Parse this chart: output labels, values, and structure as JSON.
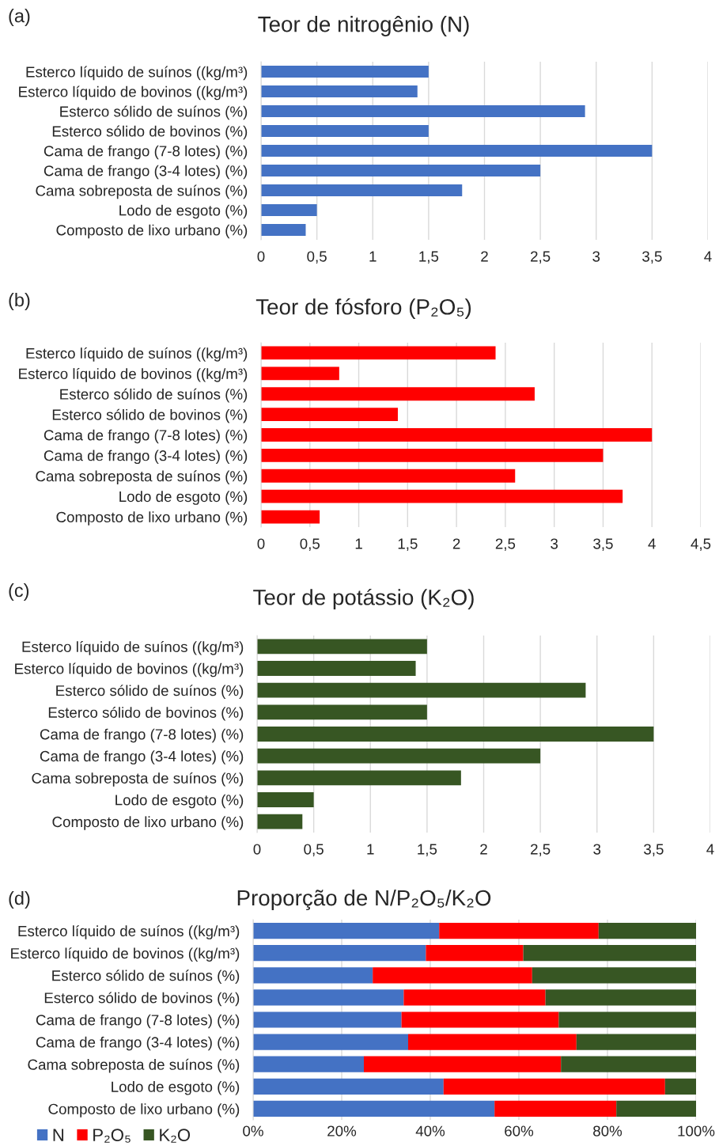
{
  "chart_data": [
    {
      "type": "bar",
      "orientation": "horizontal",
      "title": "Teor de nitrogênio (N)",
      "annotations": [
        "(a)"
      ],
      "categories": [
        "Esterco líquido de suínos ((kg/m³)",
        "Esterco líquido de bovinos ((kg/m³)",
        "Esterco sólido de suínos (%)",
        "Esterco sólido de bovinos (%)",
        "Cama de frango (7-8 lotes) (%)",
        "Cama de frango (3-4 lotes) (%)",
        "Cama sobreposta de suínos (%)",
        "Lodo de esgoto (%)",
        "Composto de lixo urbano (%)"
      ],
      "values": [
        1.5,
        1.4,
        2.9,
        1.5,
        3.5,
        2.5,
        1.8,
        0.5,
        0.4
      ],
      "color": "#4472c4",
      "xlim": [
        0,
        4
      ],
      "xticks": [
        0,
        {
          "value": 0.5,
          "label": "0,5"
        },
        1,
        {
          "value": 1.5,
          "label": "1,5"
        },
        2,
        {
          "value": 2.5,
          "label": "2,5"
        },
        3,
        {
          "value": 3.5,
          "label": "3,5"
        },
        4
      ],
      "grid": "x"
    },
    {
      "type": "bar",
      "orientation": "horizontal",
      "title": "Teor de fósforo (P₂O₅)",
      "annotations": [
        "(b)"
      ],
      "categories": [
        "Esterco líquido de suínos ((kg/m³)",
        "Esterco líquido de bovinos ((kg/m³)",
        "Esterco sólido de suínos (%)",
        "Esterco sólido de bovinos (%)",
        "Cama de frango (7-8 lotes) (%)",
        "Cama de frango (3-4 lotes) (%)",
        "Cama sobreposta de suínos (%)",
        "Lodo de esgoto (%)",
        "Composto de lixo urbano (%)"
      ],
      "values": [
        2.4,
        0.8,
        2.8,
        1.4,
        4.0,
        3.5,
        2.6,
        3.7,
        0.6
      ],
      "color": "#ff0000",
      "xlim": [
        0,
        4.5
      ],
      "xticks": [
        0,
        {
          "value": 0.5,
          "label": "0,5"
        },
        1,
        {
          "value": 1.5,
          "label": "1,5"
        },
        2,
        {
          "value": 2.5,
          "label": "2,5"
        },
        3,
        {
          "value": 3.5,
          "label": "3,5"
        },
        4,
        {
          "value": 4.5,
          "label": "4,5"
        }
      ],
      "grid": "x"
    },
    {
      "type": "bar",
      "orientation": "horizontal",
      "title": "Teor de potássio (K₂O)",
      "annotations": [
        "(c)"
      ],
      "categories": [
        "Esterco líquido de suínos ((kg/m³)",
        "Esterco líquido de bovinos ((kg/m³)",
        "Esterco sólido de suínos (%)",
        "Esterco sólido de bovinos (%)",
        "Cama de frango (7-8 lotes) (%)",
        "Cama de frango (3-4 lotes) (%)",
        "Cama sobreposta de suínos (%)",
        "Lodo de esgoto (%)",
        "Composto de lixo urbano (%)"
      ],
      "values": [
        1.5,
        1.4,
        2.9,
        1.5,
        3.5,
        2.5,
        1.8,
        0.5,
        0.4
      ],
      "color": "#375623",
      "xlim": [
        0,
        4
      ],
      "xticks": [
        0,
        {
          "value": 0.5,
          "label": "0,5"
        },
        1,
        {
          "value": 1.5,
          "label": "1,5"
        },
        2,
        {
          "value": 2.5,
          "label": "2,5"
        },
        3,
        {
          "value": 3.5,
          "label": "3,5"
        },
        4
      ],
      "grid": "x"
    },
    {
      "type": "bar",
      "orientation": "horizontal",
      "stacked": true,
      "title": "Proporção de N/P₂O₅/K₂O",
      "annotations": [
        "(d)"
      ],
      "categories": [
        "Esterco líquido de suínos ((kg/m³)",
        "Esterco líquido de bovinos ((kg/m³)",
        "Esterco sólido de suínos (%)",
        "Esterco sólido de bovinos (%)",
        "Cama de frango (7-8 lotes) (%)",
        "Cama de frango (3-4 lotes) (%)",
        "Cama sobreposta de suínos (%)",
        "Lodo de esgoto (%)",
        "Composto de lixo urbano (%)"
      ],
      "series": [
        {
          "name": "N",
          "color": "#4472c4",
          "values": [
            42,
            39,
            27,
            34,
            33.5,
            35,
            25,
            43,
            54.5
          ]
        },
        {
          "name": "P₂O₅",
          "color": "#ff0000",
          "values": [
            36,
            22,
            36,
            32,
            35.5,
            38,
            44.5,
            50,
            27.5
          ]
        },
        {
          "name": "K₂O",
          "color": "#375623",
          "values": [
            22,
            39,
            37,
            34,
            31,
            27,
            30.5,
            7,
            18
          ]
        }
      ],
      "xlim": [
        0,
        100
      ],
      "xticks": [
        {
          "value": 0,
          "label": "0%"
        },
        {
          "value": 20,
          "label": "20%"
        },
        {
          "value": 40,
          "label": "40%"
        },
        {
          "value": 60,
          "label": "60%"
        },
        {
          "value": 80,
          "label": "80%"
        },
        {
          "value": 100,
          "label": "100%"
        }
      ],
      "grid": "x",
      "legend": "bottom left"
    }
  ]
}
